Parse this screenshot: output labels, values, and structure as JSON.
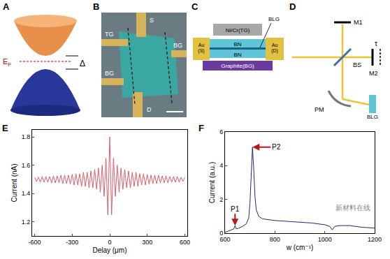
{
  "panels": {
    "A": {
      "label": "A",
      "fermi_level": {
        "text": "E",
        "sub": "F"
      },
      "gap": "Δ"
    },
    "B": {
      "label": "B",
      "electrodes": [
        "TG",
        "BG",
        "S",
        "D",
        "BG"
      ]
    },
    "C": {
      "label": "C",
      "top_gate": "Ni/Cr(TG)",
      "sample": "BLG",
      "layers": [
        "BN",
        "BN"
      ],
      "source": [
        "Au",
        "(S)"
      ],
      "drain": [
        "Au",
        "(D)"
      ],
      "back_gate": "Graphite(BG)"
    },
    "D": {
      "label": "D",
      "mirror1": "M1",
      "splitter": "BS",
      "delay": "τ",
      "mirror2": "M2",
      "parabolic_mirror": "PM",
      "sample": "BLG"
    }
  },
  "chart_data": [
    {
      "label": "E",
      "type": "line",
      "x_label": "Delay (μm)",
      "y_label": "Current (nA)",
      "color": "#d95f6a",
      "x": [
        -600,
        -585,
        -570,
        -555,
        -540,
        -525,
        -510,
        -495,
        -480,
        -465,
        -450,
        -435,
        -420,
        -405,
        -390,
        -375,
        -360,
        -345,
        -330,
        -315,
        -300,
        -285,
        -270,
        -255,
        -240,
        -225,
        -210,
        -195,
        -180,
        -165,
        -150,
        -135,
        -120,
        -105,
        -90,
        -75,
        -60,
        -45,
        -30,
        -15,
        0,
        15,
        30,
        45,
        60,
        75,
        90,
        105,
        120,
        135,
        150,
        165,
        180,
        195,
        210,
        225,
        240,
        255,
        270,
        285,
        300,
        315,
        330,
        345,
        360,
        375,
        390,
        405,
        420,
        435,
        450,
        465,
        480,
        495,
        510,
        525,
        540,
        555,
        570,
        585,
        600
      ],
      "values": [
        1.515,
        1.485,
        1.515,
        1.48,
        1.52,
        1.48,
        1.52,
        1.48,
        1.52,
        1.475,
        1.525,
        1.475,
        1.525,
        1.475,
        1.53,
        1.47,
        1.53,
        1.47,
        1.53,
        1.465,
        1.535,
        1.46,
        1.54,
        1.46,
        1.54,
        1.45,
        1.55,
        1.45,
        1.55,
        1.44,
        1.56,
        1.44,
        1.57,
        1.43,
        1.58,
        1.41,
        1.6,
        1.38,
        1.65,
        1.25,
        1.8,
        1.25,
        1.65,
        1.38,
        1.6,
        1.41,
        1.58,
        1.43,
        1.57,
        1.44,
        1.56,
        1.44,
        1.55,
        1.45,
        1.55,
        1.45,
        1.54,
        1.46,
        1.54,
        1.46,
        1.535,
        1.465,
        1.53,
        1.47,
        1.53,
        1.47,
        1.53,
        1.475,
        1.525,
        1.475,
        1.525,
        1.475,
        1.52,
        1.48,
        1.52,
        1.48,
        1.52,
        1.48,
        1.515,
        1.485,
        1.515
      ],
      "xlim": [
        -620,
        620
      ],
      "xticks": [
        -600,
        -300,
        0,
        300,
        600
      ],
      "ylim": [
        1.1,
        1.85
      ],
      "yticks": [
        1.2,
        1.4,
        1.6,
        1.8
      ]
    },
    {
      "label": "F",
      "type": "line",
      "x_label": "w (cm⁻¹)",
      "y_label": "Current (a.u.)",
      "color": "#1f2a6e",
      "x": [
        600,
        610,
        620,
        630,
        635,
        640,
        645,
        655,
        670,
        685,
        695,
        700,
        705,
        710,
        715,
        720,
        725,
        735,
        750,
        775,
        800,
        850,
        900,
        950,
        1000,
        1020,
        1030,
        1040,
        1060,
        1100,
        1150,
        1200
      ],
      "values": [
        0.05,
        0.1,
        0.15,
        0.2,
        0.25,
        0.45,
        0.25,
        0.3,
        0.4,
        0.55,
        0.9,
        1.8,
        3.5,
        5.1,
        3.8,
        2.2,
        1.4,
        1.0,
        0.85,
        0.8,
        0.75,
        0.7,
        0.65,
        0.6,
        0.5,
        0.4,
        0.2,
        0.4,
        0.45,
        0.45,
        0.35,
        0.3
      ],
      "xlim": [
        600,
        1200
      ],
      "xticks": [
        600,
        800,
        1000,
        1200
      ],
      "ylim": [
        0,
        6
      ],
      "yticks": [
        0,
        2,
        4,
        6
      ],
      "annotations": [
        {
          "text": "P1",
          "x": 640,
          "y": 0.45
        },
        {
          "text": "P2",
          "x": 710,
          "y": 5.1
        }
      ]
    }
  ],
  "watermark": "新材料在线"
}
